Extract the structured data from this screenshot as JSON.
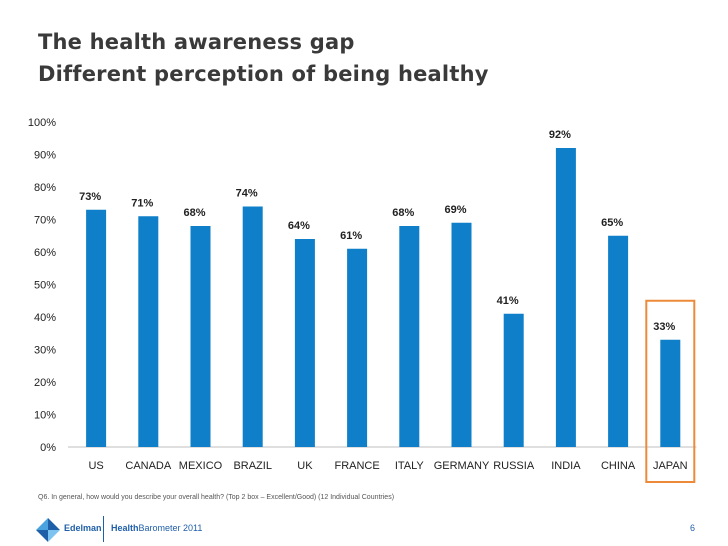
{
  "header": {
    "title_line1": "The health awareness gap",
    "title_line2": "Different perception of being healthy"
  },
  "chart_data": {
    "type": "bar",
    "title": "",
    "xlabel": "",
    "ylabel": "",
    "categories": [
      "US",
      "CANADA",
      "MEXICO",
      "BRAZIL",
      "UK",
      "FRANCE",
      "ITALY",
      "GERMANY",
      "RUSSIA",
      "INDIA",
      "CHINA",
      "JAPAN"
    ],
    "values": [
      73,
      71,
      68,
      74,
      64,
      61,
      68,
      69,
      41,
      92,
      65,
      33
    ],
    "value_labels": [
      "73%",
      "71%",
      "68%",
      "74%",
      "64%",
      "61%",
      "68%",
      "69%",
      "41%",
      "92%",
      "65%",
      "33%"
    ],
    "ylim": [
      0,
      100
    ],
    "yticks": [
      "0%",
      "10%",
      "20%",
      "30%",
      "40%",
      "50%",
      "60%",
      "70%",
      "80%",
      "90%",
      "100%"
    ],
    "grid": false,
    "highlight_category": "JAPAN",
    "bar_color": "#0e7fc8",
    "highlight_color": "#ed8a3a"
  },
  "footnote": "Q6. In general, how would you describe your overall health? (Top 2 box – Excellent/Good) (12 Individual Countries)",
  "footer": {
    "brand": "Edelman",
    "report_bold": "Health",
    "report_rest": "Barometer 2011",
    "page_number": "6"
  },
  "icons": {
    "logo": "edelman-logo-icon"
  }
}
